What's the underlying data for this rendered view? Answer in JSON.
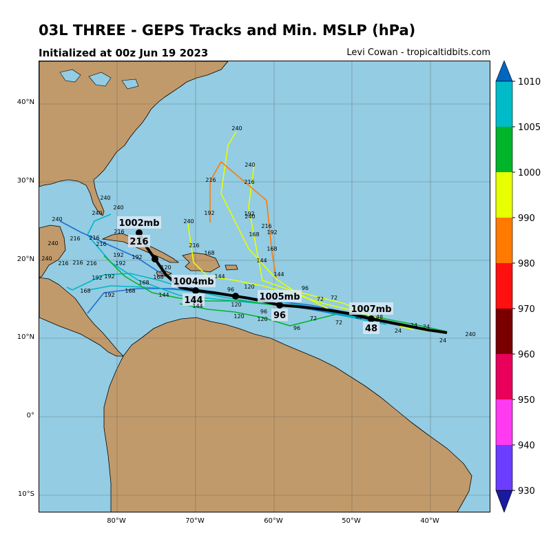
{
  "header": {
    "title": "03L THREE - GEPS Tracks and Min. MSLP (hPa)",
    "subtitle": "Initialized at 00z Jun 19 2023",
    "credit": "Levi Cowan - tropicaltidbits.com"
  },
  "axes": {
    "lat_labels": [
      "40°N",
      "30°N",
      "20°N",
      "10°N",
      "0°",
      "10°S"
    ],
    "lon_labels": [
      "80°W",
      "70°W",
      "60°W",
      "50°W",
      "40°W"
    ]
  },
  "colors": {
    "ocean": "#93cce3",
    "land": "#c19a6b",
    "lakes": "#93cce3",
    "mean_track": "#000000"
  },
  "colorbar": {
    "ticks": [
      "1010",
      "1005",
      "1000",
      "990",
      "980",
      "970",
      "960",
      "950",
      "940",
      "930"
    ],
    "bands": [
      "#00bcc8",
      "#00b52a",
      "#e7ff00",
      "#ff7a00",
      "#ff1010",
      "#7a0000",
      "#e8005a",
      "#ff3af0",
      "#6a3dff"
    ],
    "top_cap": "#0066c0",
    "bottom_cap": "#1a1aa0"
  },
  "mean_track_labels": [
    {
      "pressure": "1007mb",
      "hour": "48"
    },
    {
      "pressure": "1005mb",
      "hour": "96"
    },
    {
      "pressure": "1004mb",
      "hour": "144"
    },
    {
      "pressure": "1002mb",
      "hour": "216"
    }
  ],
  "hour_labels": [
    "24",
    "48",
    "72",
    "96",
    "120",
    "144",
    "168",
    "192",
    "216",
    "240"
  ]
}
